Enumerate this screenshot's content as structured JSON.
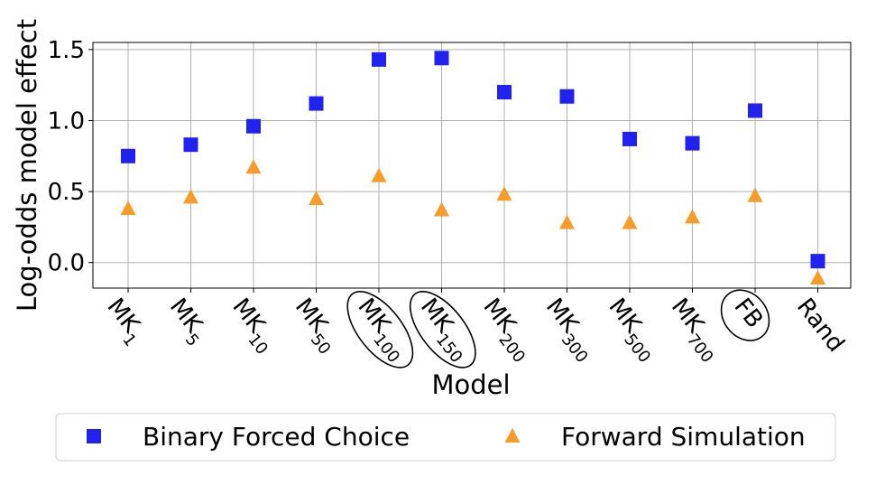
{
  "chart_data": {
    "type": "scatter",
    "title": "",
    "xlabel": "Model",
    "ylabel": "Log-odds model effect",
    "ylim": [
      -0.18,
      1.55
    ],
    "yticks": [
      0.0,
      0.5,
      1.0,
      1.5
    ],
    "ytick_labels": [
      "0.0",
      "0.5",
      "1.0",
      "1.5"
    ],
    "grid": true,
    "legend_position": "bottom",
    "categories": [
      {
        "base": "MK",
        "sub": "1",
        "circled": false
      },
      {
        "base": "MK",
        "sub": "5",
        "circled": false
      },
      {
        "base": "MK",
        "sub": "10",
        "circled": false
      },
      {
        "base": "MK",
        "sub": "50",
        "circled": false
      },
      {
        "base": "MK",
        "sub": "100",
        "circled": true
      },
      {
        "base": "MK",
        "sub": "150",
        "circled": true
      },
      {
        "base": "MK",
        "sub": "200",
        "circled": false
      },
      {
        "base": "MK",
        "sub": "300",
        "circled": false
      },
      {
        "base": "MK",
        "sub": "500",
        "circled": false
      },
      {
        "base": "MK",
        "sub": "700",
        "circled": false
      },
      {
        "base": "FB",
        "sub": "",
        "circled": true
      },
      {
        "base": "Rand",
        "sub": "",
        "circled": false
      }
    ],
    "series": [
      {
        "name": "Binary Forced Choice",
        "marker": "square",
        "color": "#2222ee",
        "values": [
          0.75,
          0.83,
          0.96,
          1.12,
          1.43,
          1.44,
          1.2,
          1.17,
          0.87,
          0.84,
          1.07,
          0.01
        ]
      },
      {
        "name": "Forward Simulation",
        "marker": "triangle",
        "color": "#f59c2a",
        "values": [
          0.38,
          0.46,
          0.67,
          0.45,
          0.61,
          0.37,
          0.48,
          0.28,
          0.28,
          0.32,
          0.47,
          -0.11
        ]
      }
    ]
  }
}
